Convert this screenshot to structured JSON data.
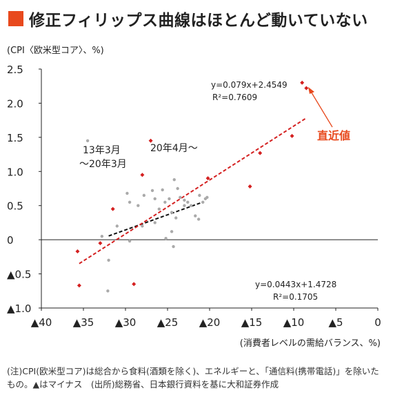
{
  "title": "修正フィリップス曲線はほとんど動いていない",
  "accent_color": "#e8491d",
  "chart_data": {
    "type": "scatter",
    "ylabel": "(CPI〈欧米型コア〉、%)",
    "xlabel": "(消費者レベルの需給バランス、%)",
    "xlim": [
      -40,
      0
    ],
    "ylim": [
      -1.0,
      2.5
    ],
    "x_ticks": [
      -40,
      -35,
      -30,
      -25,
      -20,
      -15,
      -10,
      -5,
      0
    ],
    "x_tick_labels": [
      "▲40",
      "▲35",
      "▲30",
      "▲25",
      "▲20",
      "▲15",
      "▲10",
      "▲5",
      "0"
    ],
    "y_ticks": [
      2.5,
      2.0,
      1.5,
      1.0,
      0.5,
      0,
      -0.5,
      -1.0
    ],
    "y_tick_labels": [
      "2.5",
      "2.0",
      "1.5",
      "1.0",
      "0.5",
      "0",
      "▲0.5",
      "▲1.0"
    ],
    "series": [
      {
        "name": "13年3月～20年3月",
        "color": "#aaaaaa",
        "points": [
          [
            -34.5,
            1.45
          ],
          [
            -32.8,
            0.05
          ],
          [
            -32,
            -0.3
          ],
          [
            -31,
            0.2
          ],
          [
            -29.8,
            0.68
          ],
          [
            -29.5,
            -0.02
          ],
          [
            -28.5,
            0.5
          ],
          [
            -28,
            0.2
          ],
          [
            -27.8,
            0.65
          ],
          [
            -26.8,
            0.72
          ],
          [
            -26.5,
            0.6
          ],
          [
            -26,
            0.45
          ],
          [
            -25.6,
            0.73
          ],
          [
            -25.3,
            0.55
          ],
          [
            -24.8,
            0.6
          ],
          [
            -24.5,
            0.4
          ],
          [
            -24.2,
            0.88
          ],
          [
            -23.8,
            0.75
          ],
          [
            -23.5,
            0.62
          ],
          [
            -23,
            0.5
          ],
          [
            -22.6,
            0.55
          ],
          [
            -22.2,
            0.5
          ],
          [
            -21.7,
            0.35
          ],
          [
            -21.3,
            0.3
          ],
          [
            -21.2,
            0.65
          ],
          [
            -20.8,
            0.55
          ],
          [
            -20.5,
            0.6
          ],
          [
            -20.3,
            0.62
          ],
          [
            -24.0,
            0.32
          ],
          [
            -24.5,
            0.12
          ],
          [
            -25.2,
            0.02
          ],
          [
            -24.3,
            -0.1
          ],
          [
            -32.1,
            -0.75
          ],
          [
            -26.5,
            0.25
          ],
          [
            -23,
            0.58
          ],
          [
            -29.5,
            0.55
          ]
        ]
      },
      {
        "name": "20年4月～",
        "color": "#d42020",
        "points": [
          [
            -35.7,
            -0.17
          ],
          [
            -35.5,
            -0.67
          ],
          [
            -33,
            -0.05
          ],
          [
            -31.5,
            0.45
          ],
          [
            -29,
            -0.65
          ],
          [
            -28,
            0.95
          ],
          [
            -27,
            1.45
          ],
          [
            -20.2,
            0.9
          ],
          [
            -15.2,
            0.78
          ],
          [
            -14,
            1.27
          ],
          [
            -10.2,
            1.52
          ],
          [
            -9,
            2.3
          ],
          [
            -8.5,
            2.22
          ]
        ]
      }
    ],
    "trendlines": [
      {
        "series": "13年3月～20年3月",
        "equation": "y=0.0443x+1.4728",
        "r2": "R²=0.1705",
        "slope": 0.0443,
        "intercept": 1.4728,
        "x_range": [
          -32,
          -21
        ],
        "color": "#111111"
      },
      {
        "series": "20年4月～",
        "equation": "y=0.079x+2.4549",
        "r2": "R²=0.7609",
        "slope": 0.079,
        "intercept": 2.4549,
        "x_range": [
          -35.5,
          -8.5
        ],
        "color": "#d42020"
      }
    ],
    "annotations": {
      "latest_label": "直近値",
      "latest_label_color": "#e8491d"
    }
  },
  "note": "(注)CPI(欧米型コア)は総合から食料(酒類を除く)、エネルギーと、「通信料(携帯電話)」を除いたもの。▲はマイナス　(出所)総務省、日本銀行資料を基に大和証券作成"
}
